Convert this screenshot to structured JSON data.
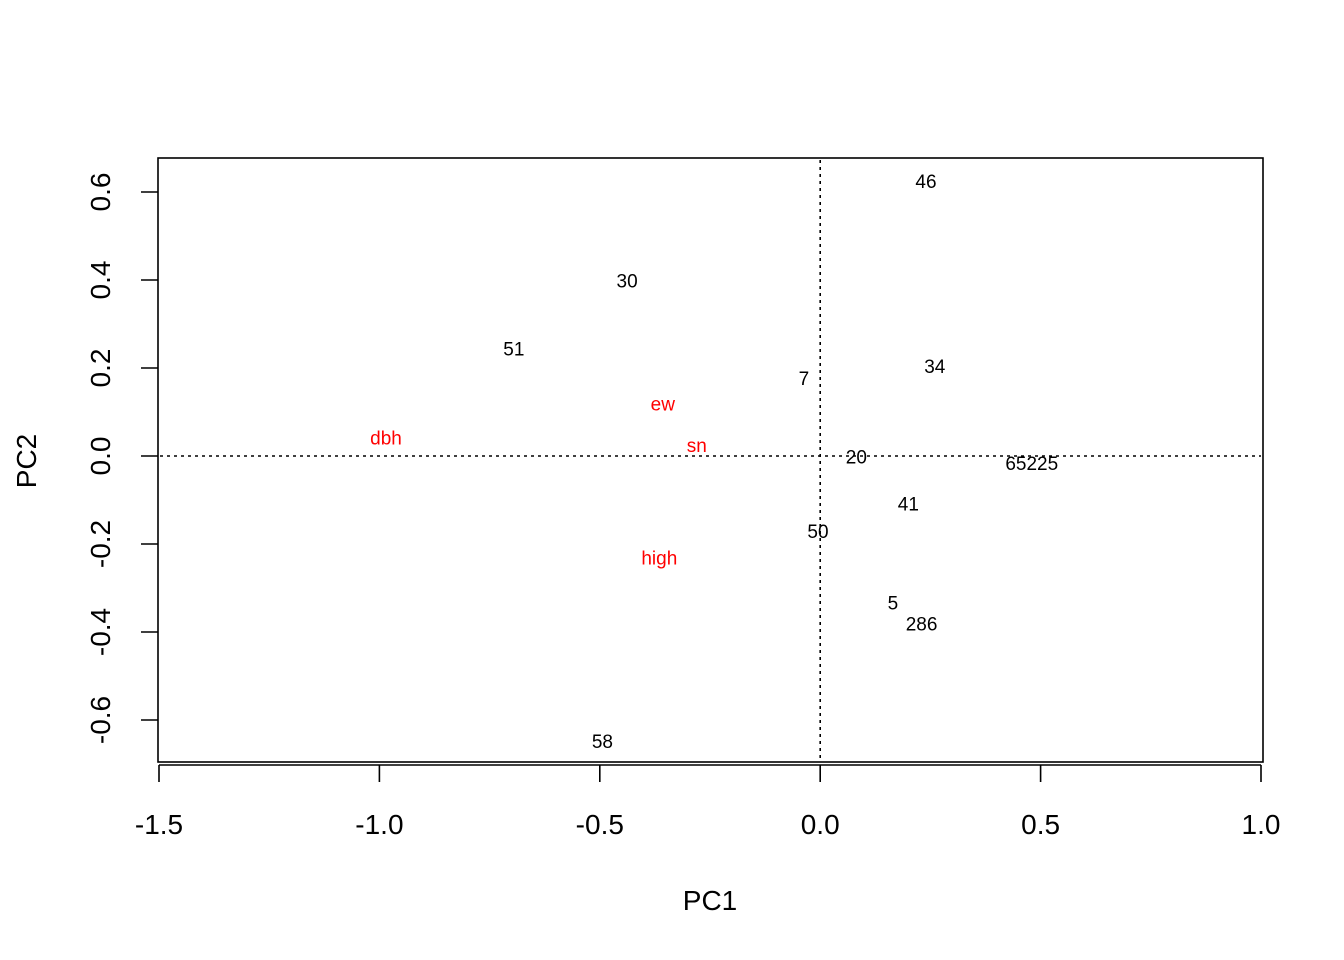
{
  "chart_data": {
    "type": "scatter",
    "title": "",
    "xlabel": "PC1",
    "ylabel": "PC2",
    "xlim": [
      -1.5,
      1.0
    ],
    "ylim": [
      -0.7,
      0.675
    ],
    "x_ticks": [
      {
        "value": -1.5,
        "label": "-1.5"
      },
      {
        "value": -1.0,
        "label": "-1.0"
      },
      {
        "value": -0.5,
        "label": "-0.5"
      },
      {
        "value": 0.0,
        "label": "0.0"
      },
      {
        "value": 0.5,
        "label": "0.5"
      },
      {
        "value": 1.0,
        "label": "1.0"
      }
    ],
    "y_ticks": [
      {
        "value": -0.6,
        "label": "-0.6"
      },
      {
        "value": -0.4,
        "label": "-0.4"
      },
      {
        "value": -0.2,
        "label": "-0.2"
      },
      {
        "value": 0.0,
        "label": "0.0"
      },
      {
        "value": 0.2,
        "label": "0.2"
      },
      {
        "value": 0.4,
        "label": "0.4"
      },
      {
        "value": 0.6,
        "label": "0.6"
      }
    ],
    "reference_lines": {
      "x": 0,
      "y": 0,
      "style": "dotted"
    },
    "grid": false,
    "series": [
      {
        "color": "#000000",
        "points": [
          {
            "label": "46",
            "x": 0.24,
            "y": 0.62
          },
          {
            "label": "30",
            "x": -0.438,
            "y": 0.394
          },
          {
            "label": "51",
            "x": -0.695,
            "y": 0.24
          },
          {
            "label": "34",
            "x": 0.26,
            "y": 0.2
          },
          {
            "label": "7",
            "x": -0.037,
            "y": 0.173
          },
          {
            "label": "20",
            "x": 0.082,
            "y": -0.006
          },
          {
            "label": "65225",
            "x": 0.48,
            "y": -0.02
          },
          {
            "label": "41",
            "x": 0.2,
            "y": -0.112
          },
          {
            "label": "50",
            "x": -0.005,
            "y": -0.175
          },
          {
            "label": "5",
            "x": 0.165,
            "y": -0.338
          },
          {
            "label": "286",
            "x": 0.23,
            "y": -0.385
          },
          {
            "label": "58",
            "x": -0.494,
            "y": -0.652
          }
        ]
      },
      {
        "color": "#ff0000",
        "points": [
          {
            "label": "dbh",
            "x": -0.985,
            "y": 0.038
          },
          {
            "label": "ew",
            "x": -0.357,
            "y": 0.115
          },
          {
            "label": "sn",
            "x": -0.28,
            "y": 0.02
          },
          {
            "label": "high",
            "x": -0.365,
            "y": -0.235
          }
        ]
      }
    ]
  }
}
